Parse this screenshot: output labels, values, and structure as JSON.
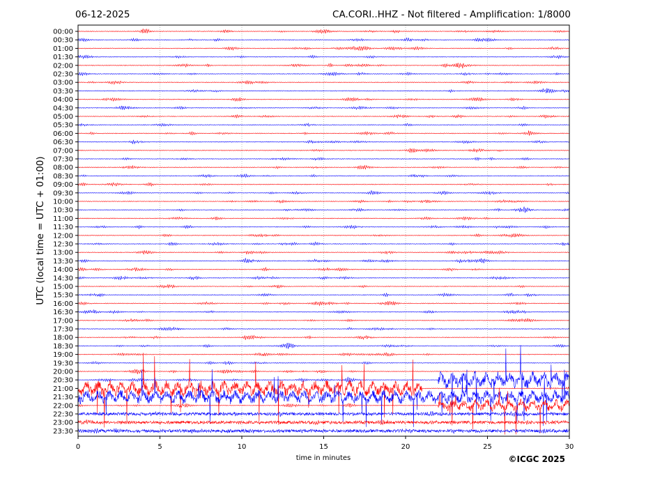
{
  "header": {
    "date": "06-12-2025",
    "station_info": "CA.CORI..HHZ - Not filtered - Amplification: 1/8000"
  },
  "footer": {
    "copyright": "©ICGC 2025"
  },
  "chart_data": {
    "type": "line",
    "title": "CA.CORI..HHZ - Not filtered - Amplification: 1/8000",
    "xlabel": "time in minutes",
    "ylabel": "UTC (local time = UTC + 01:00)",
    "xlim": [
      0,
      30
    ],
    "x_ticks": [
      0,
      5,
      10,
      15,
      20,
      25,
      30
    ],
    "row_labels": [
      "00:00",
      "00:30",
      "01:00",
      "01:30",
      "02:00",
      "02:30",
      "03:00",
      "03:30",
      "04:00",
      "04:30",
      "05:00",
      "05:30",
      "06:00",
      "06:30",
      "07:00",
      "07:30",
      "08:00",
      "08:30",
      "09:00",
      "09:30",
      "10:00",
      "10:30",
      "11:00",
      "11:30",
      "12:00",
      "12:30",
      "13:00",
      "13:30",
      "14:00",
      "14:30",
      "15:00",
      "15:30",
      "16:00",
      "16:30",
      "17:00",
      "17:30",
      "18:00",
      "18:30",
      "19:00",
      "19:30",
      "20:00",
      "20:30",
      "21:00",
      "21:30",
      "22:00",
      "22:30",
      "23:00",
      "23:30"
    ],
    "trace_colors": [
      "#ff0000",
      "#0000ff"
    ],
    "grid_x": true,
    "grid_y": false,
    "activity": {
      "quiet_until_row": 41,
      "strong_rows": [
        41,
        42,
        43,
        44,
        45
      ],
      "bursts": [
        {
          "row": 42,
          "x_start": 0,
          "x_end": 21,
          "level": 0.9
        },
        {
          "row": 43,
          "x_start": 0,
          "x_end": 30,
          "level": 0.8
        },
        {
          "row": 41,
          "x_start": 22,
          "x_end": 30,
          "level": 1.0
        },
        {
          "row": 44,
          "x_start": 22,
          "x_end": 30,
          "level": 0.7
        }
      ]
    }
  }
}
